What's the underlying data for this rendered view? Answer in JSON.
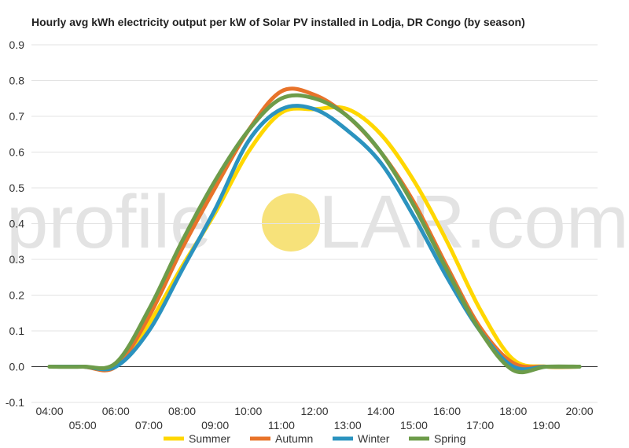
{
  "chart_data": {
    "type": "line",
    "title": "Hourly avg kWh electricity output per kW of Solar PV installed in Lodja, DR Congo (by season)",
    "watermark": {
      "left": "profile",
      "right": "LAR.com",
      "sun_color": "#f7e27a"
    },
    "ylim": [
      -0.1,
      0.9
    ],
    "yticks": [
      "-0.1",
      "0.0",
      "0.1",
      "0.2",
      "0.3",
      "0.4",
      "0.5",
      "0.6",
      "0.7",
      "0.8",
      "0.9"
    ],
    "grid": true,
    "legend_position": "bottom",
    "x": [
      "04:00",
      "05:00",
      "06:00",
      "07:00",
      "08:00",
      "09:00",
      "10:00",
      "11:00",
      "12:00",
      "13:00",
      "14:00",
      "15:00",
      "16:00",
      "17:00",
      "18:00",
      "19:00",
      "20:00"
    ],
    "series": [
      {
        "name": "Summer",
        "color": "#ffd700",
        "values": [
          0.0,
          0.0,
          0.0,
          0.12,
          0.28,
          0.43,
          0.6,
          0.71,
          0.72,
          0.72,
          0.65,
          0.52,
          0.35,
          0.16,
          0.02,
          0.0,
          0.0
        ]
      },
      {
        "name": "Autumn",
        "color": "#e8732a",
        "values": [
          0.0,
          0.0,
          0.0,
          0.14,
          0.33,
          0.5,
          0.66,
          0.77,
          0.76,
          0.7,
          0.6,
          0.46,
          0.28,
          0.11,
          0.01,
          0.0,
          0.0
        ]
      },
      {
        "name": "Winter",
        "color": "#2b93bf",
        "values": [
          0.0,
          0.0,
          0.0,
          0.1,
          0.27,
          0.44,
          0.63,
          0.72,
          0.72,
          0.66,
          0.57,
          0.42,
          0.25,
          0.1,
          0.0,
          0.0,
          0.0
        ]
      },
      {
        "name": "Spring",
        "color": "#6d9c4a",
        "values": [
          0.0,
          0.0,
          0.01,
          0.16,
          0.35,
          0.52,
          0.66,
          0.75,
          0.75,
          0.7,
          0.6,
          0.45,
          0.27,
          0.1,
          -0.01,
          0.0,
          0.0
        ]
      }
    ]
  }
}
